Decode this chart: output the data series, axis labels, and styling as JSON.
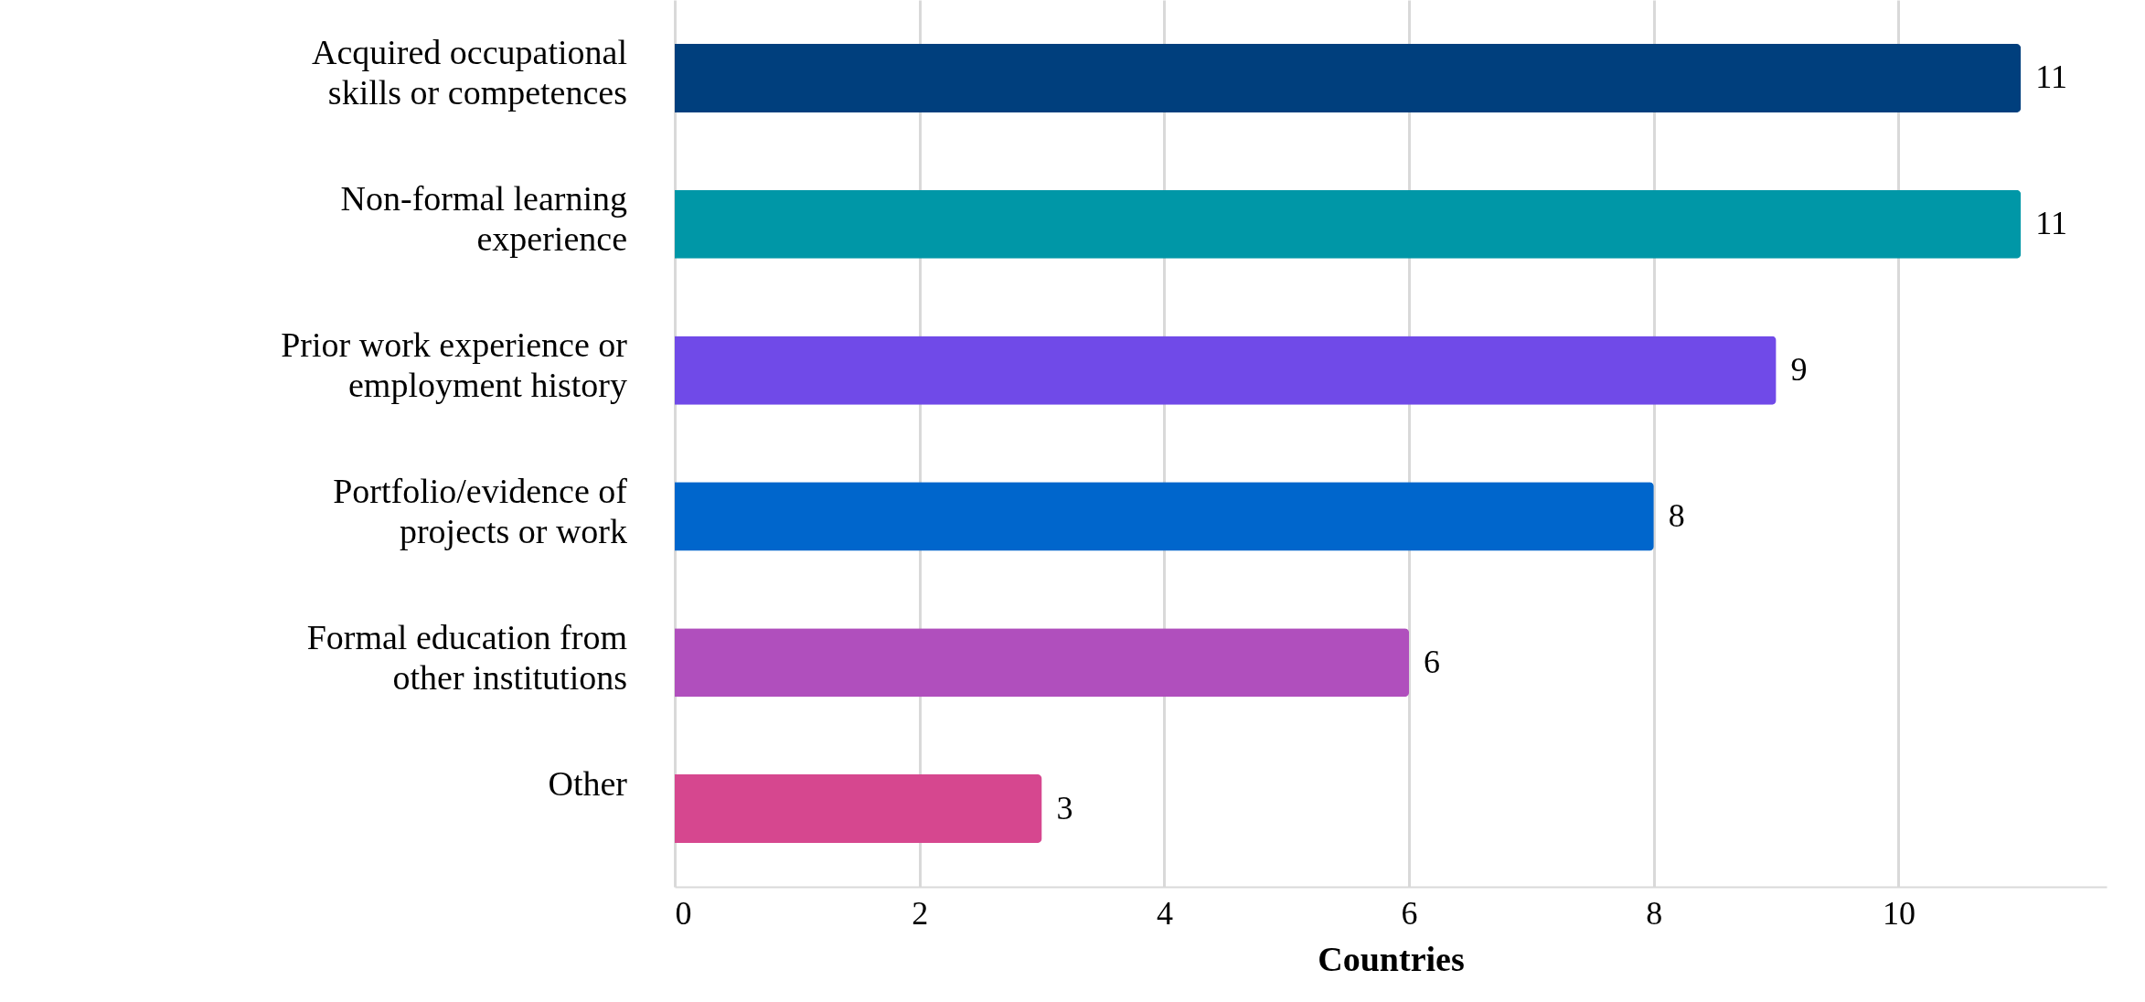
{
  "chart_data": {
    "type": "bar",
    "orientation": "horizontal",
    "xlabel": "Countries",
    "categories": [
      "Acquired occupational\nskills or competences",
      "Non-formal  learning\nexperience",
      "Prior work experience or\nemployment  history",
      "Portfolio/evidence of\nprojects or work",
      "Formal education from\nother  institutions",
      "Other"
    ],
    "values": [
      11,
      11,
      9,
      8,
      6,
      3
    ],
    "colors": [
      "#003f7d",
      "#0097a7",
      "#704ae8",
      "#0066cc",
      "#b04fbd",
      "#d6478f"
    ],
    "xlim": [
      0,
      11.7
    ],
    "xticks": [
      0,
      2,
      4,
      6,
      8,
      10
    ],
    "grid": "x",
    "data_labels": true
  }
}
